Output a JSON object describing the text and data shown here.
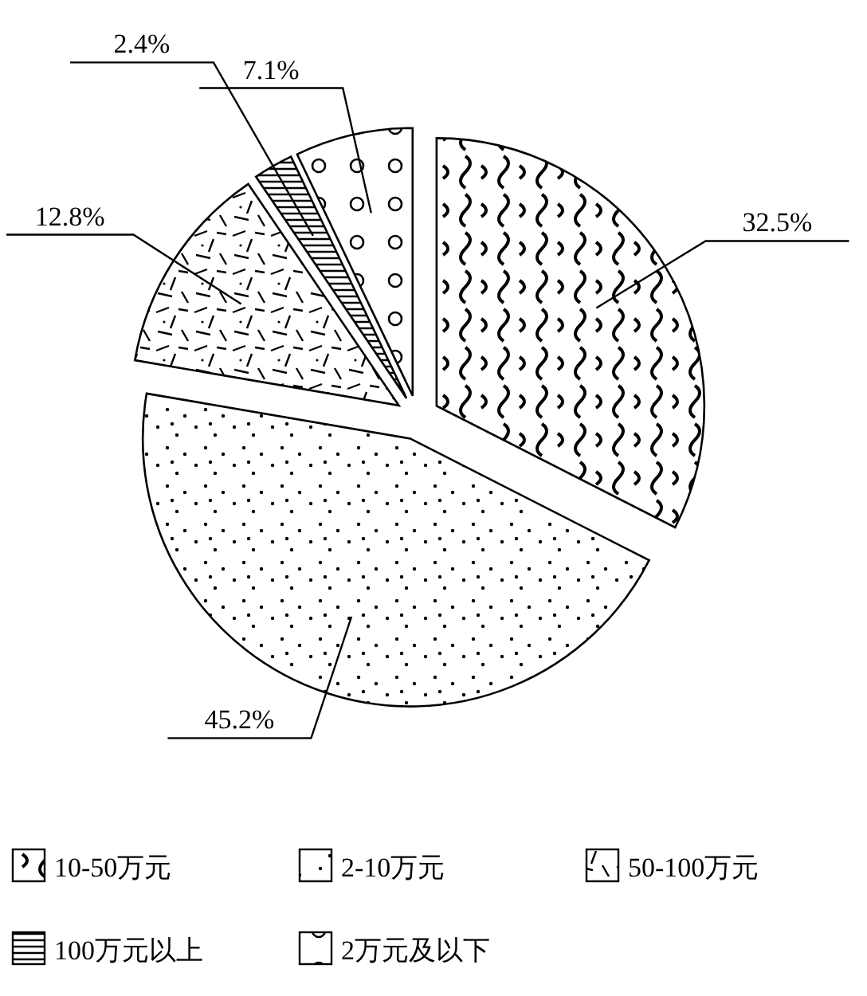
{
  "chart_data": {
    "type": "pie",
    "categories": [
      "10-50万元",
      "2-10万元",
      "50-100万元",
      "100万元以上",
      "2万元及以下"
    ],
    "values": [
      32.5,
      45.2,
      12.8,
      2.4,
      7.1
    ],
    "value_labels": [
      "32.5%",
      "45.2%",
      "12.8%",
      "2.4%",
      "7.1%"
    ],
    "legend": "bottom"
  }
}
